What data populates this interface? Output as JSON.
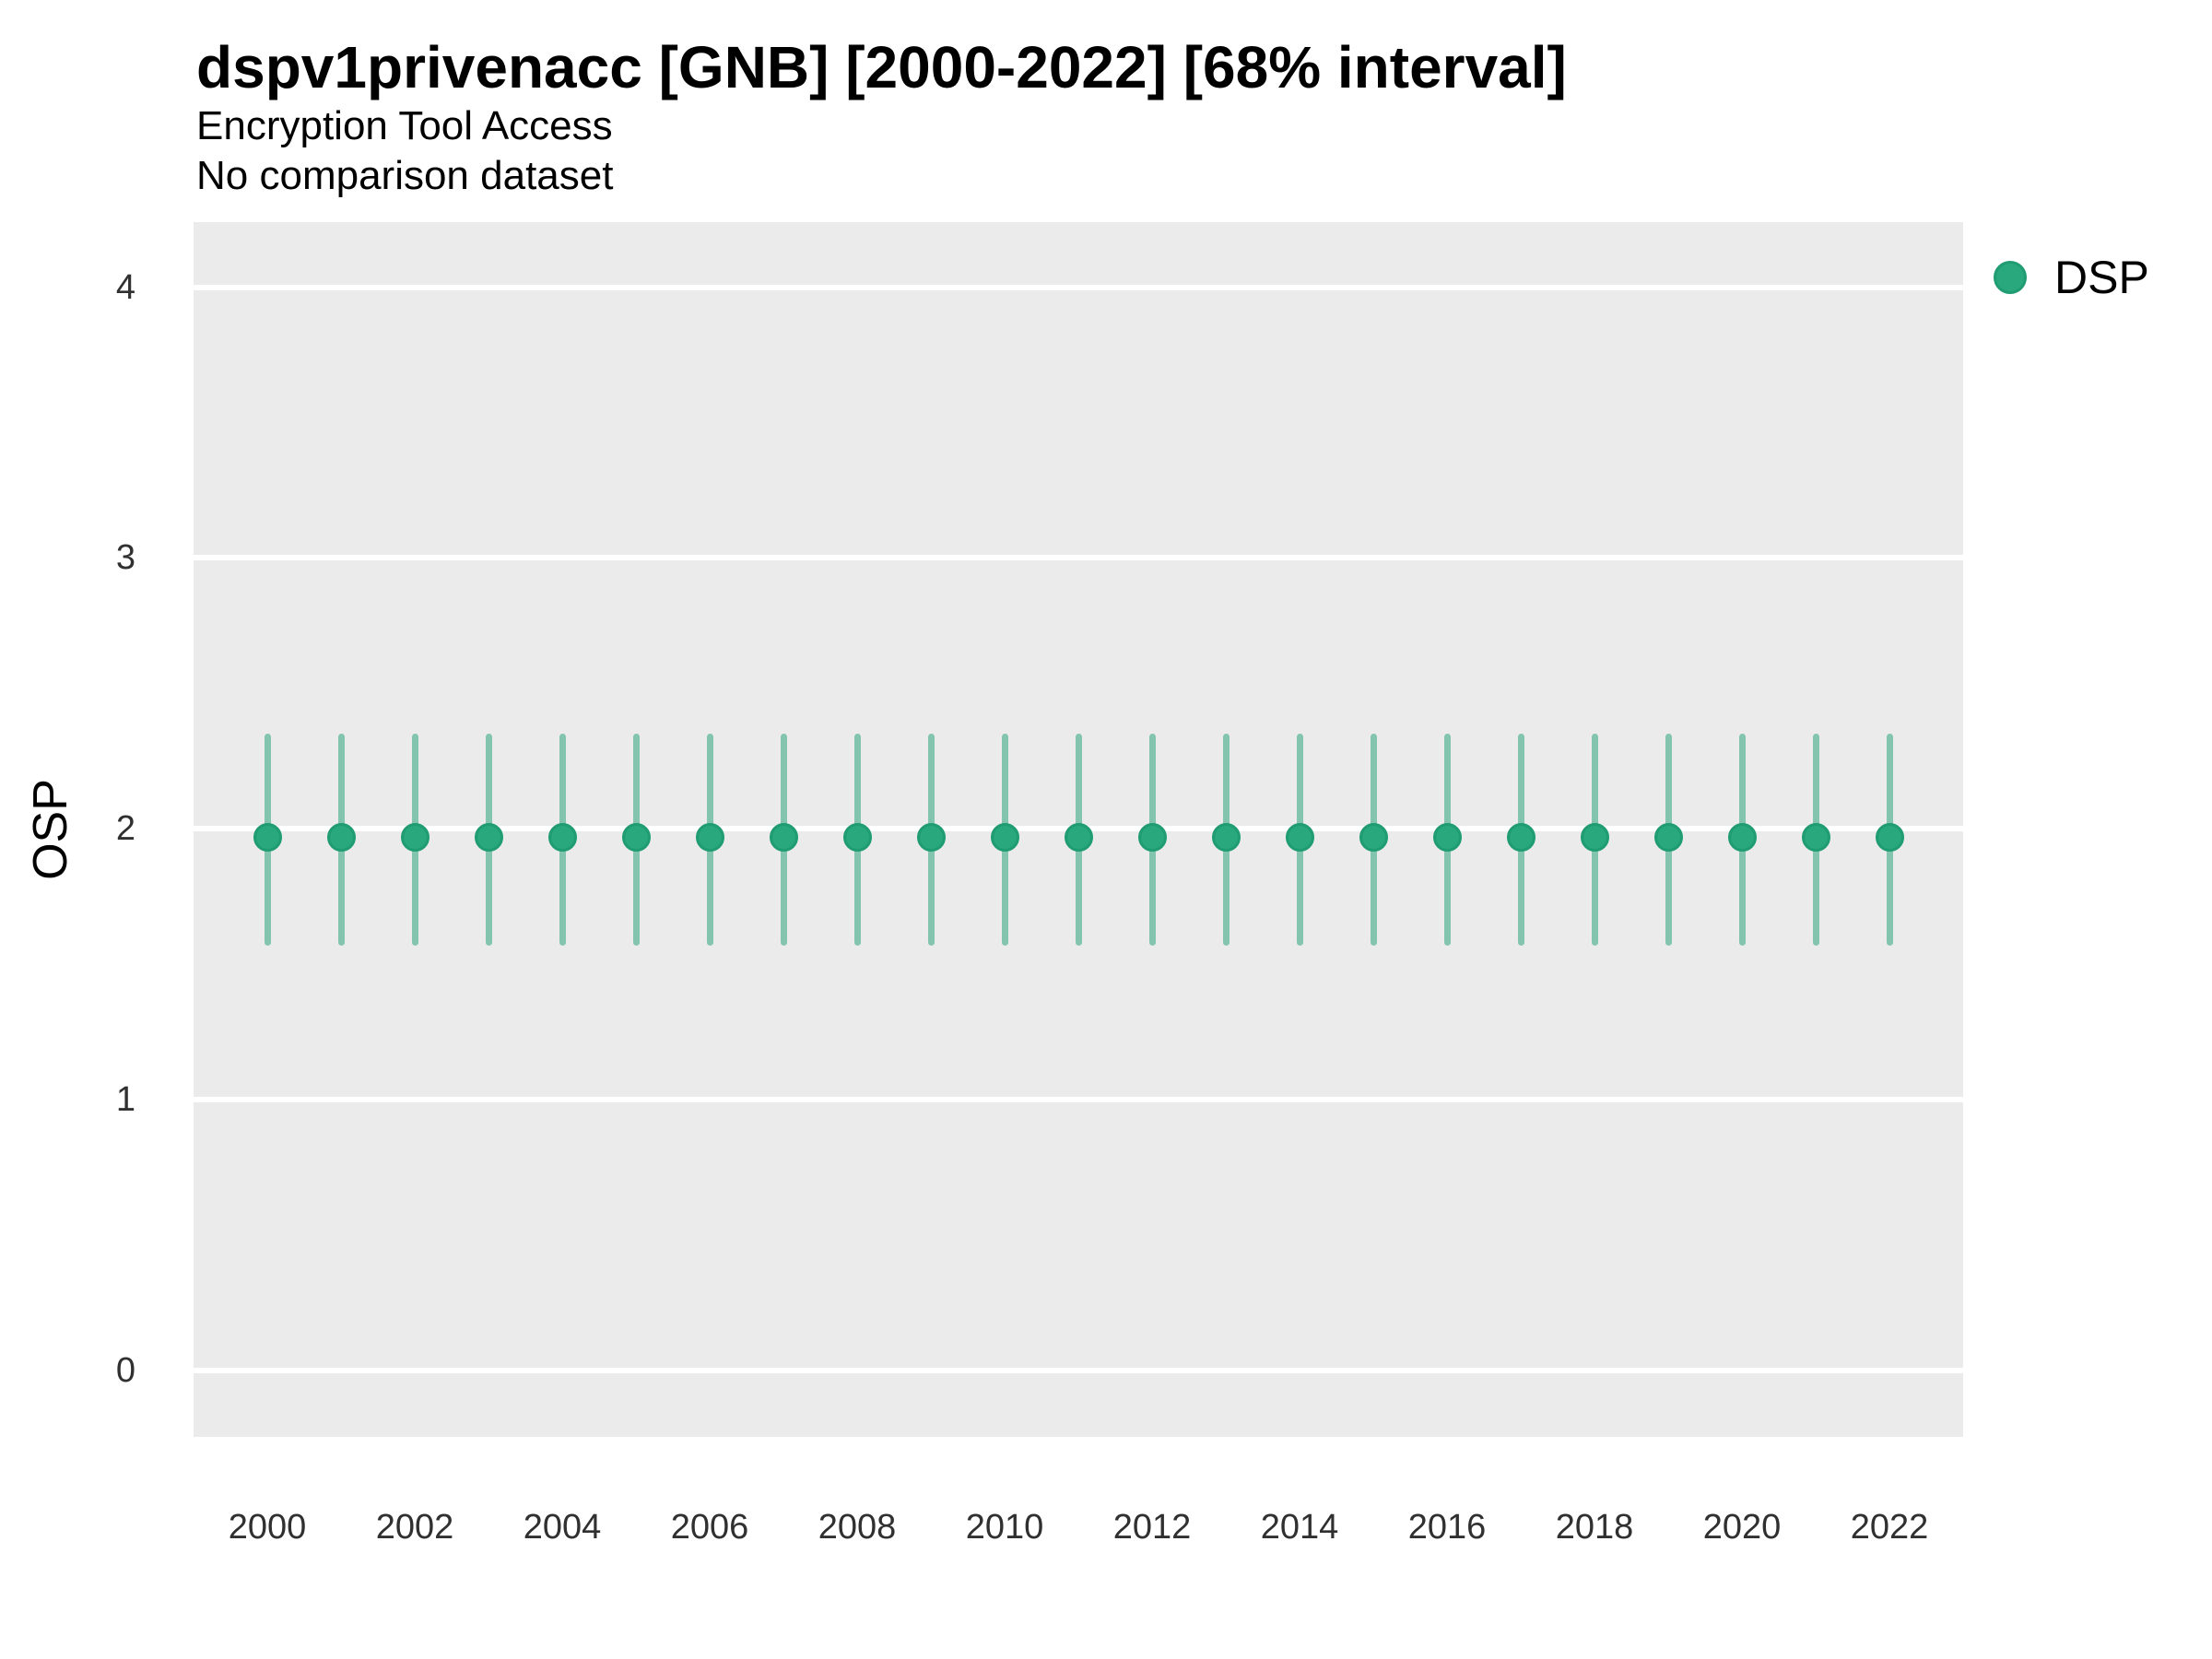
{
  "header": {
    "title": "dspv1privenacc [GNB] [2000-2022] [68% interval]",
    "subtitle": "Encryption Tool Access",
    "note": "No comparison dataset"
  },
  "axes": {
    "y_label": "OSP",
    "y_ticks": [
      0,
      1,
      2,
      3,
      4
    ],
    "x_ticks": [
      2000,
      2002,
      2004,
      2006,
      2008,
      2010,
      2012,
      2014,
      2016,
      2018,
      2020,
      2022
    ]
  },
  "legend": {
    "position": "right-top",
    "items": [
      {
        "label": "DSP",
        "color": "#2aa87d",
        "stroke": "#1f9c71"
      }
    ]
  },
  "style": {
    "panel_background": "#ebebeb",
    "gridline_color": "#ffffff",
    "point_fill": "#2aa87d",
    "point_stroke": "#1f9c71",
    "interval_color": "rgba(27,158,113,0.5)"
  },
  "chart_data": {
    "type": "scatter",
    "title": "dspv1privenacc [GNB] [2000-2022] [68% interval]",
    "subtitle": "Encryption Tool Access",
    "note": "No comparison dataset",
    "xlabel": "",
    "ylabel": "OSP",
    "xlim": [
      1999,
      2023
    ],
    "ylim": [
      -0.245,
      4.24
    ],
    "grid": "horizontal-major-only",
    "legend_position": "right-top",
    "interval_label": "68% interval",
    "series": [
      {
        "name": "DSP",
        "marker": "circle-with-vertical-interval-bar",
        "points": [
          {
            "x": 2000,
            "y": 1.97,
            "lo": 1.57,
            "hi": 2.35
          },
          {
            "x": 2001,
            "y": 1.97,
            "lo": 1.57,
            "hi": 2.35
          },
          {
            "x": 2002,
            "y": 1.97,
            "lo": 1.57,
            "hi": 2.35
          },
          {
            "x": 2003,
            "y": 1.97,
            "lo": 1.57,
            "hi": 2.35
          },
          {
            "x": 2004,
            "y": 1.97,
            "lo": 1.57,
            "hi": 2.35
          },
          {
            "x": 2005,
            "y": 1.97,
            "lo": 1.57,
            "hi": 2.35
          },
          {
            "x": 2006,
            "y": 1.97,
            "lo": 1.57,
            "hi": 2.35
          },
          {
            "x": 2007,
            "y": 1.97,
            "lo": 1.57,
            "hi": 2.35
          },
          {
            "x": 2008,
            "y": 1.97,
            "lo": 1.57,
            "hi": 2.35
          },
          {
            "x": 2009,
            "y": 1.97,
            "lo": 1.57,
            "hi": 2.35
          },
          {
            "x": 2010,
            "y": 1.97,
            "lo": 1.57,
            "hi": 2.35
          },
          {
            "x": 2011,
            "y": 1.97,
            "lo": 1.57,
            "hi": 2.35
          },
          {
            "x": 2012,
            "y": 1.97,
            "lo": 1.57,
            "hi": 2.35
          },
          {
            "x": 2013,
            "y": 1.97,
            "lo": 1.57,
            "hi": 2.35
          },
          {
            "x": 2014,
            "y": 1.97,
            "lo": 1.57,
            "hi": 2.35
          },
          {
            "x": 2015,
            "y": 1.97,
            "lo": 1.57,
            "hi": 2.35
          },
          {
            "x": 2016,
            "y": 1.97,
            "lo": 1.57,
            "hi": 2.35
          },
          {
            "x": 2017,
            "y": 1.97,
            "lo": 1.57,
            "hi": 2.35
          },
          {
            "x": 2018,
            "y": 1.97,
            "lo": 1.57,
            "hi": 2.35
          },
          {
            "x": 2019,
            "y": 1.97,
            "lo": 1.57,
            "hi": 2.35
          },
          {
            "x": 2020,
            "y": 1.97,
            "lo": 1.57,
            "hi": 2.35
          },
          {
            "x": 2021,
            "y": 1.97,
            "lo": 1.57,
            "hi": 2.35
          },
          {
            "x": 2022,
            "y": 1.97,
            "lo": 1.57,
            "hi": 2.35
          }
        ]
      }
    ]
  }
}
